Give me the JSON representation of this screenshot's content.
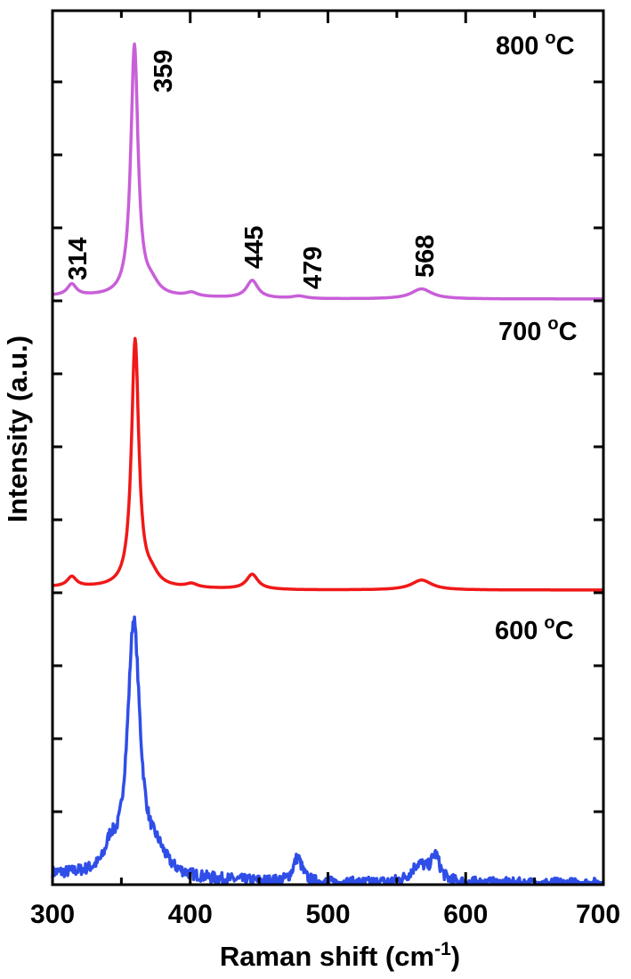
{
  "chart_data": {
    "type": "line",
    "xlabel": "Raman shift (cm",
    "xlabel_superscript": "-1",
    "xlabel_suffix": ")",
    "ylabel": "Intensity (a.u.)",
    "xlim": [
      300,
      700
    ],
    "xticks": [
      "300",
      "400",
      "500",
      "600",
      "700"
    ],
    "degree_symbol": "o",
    "series": [
      {
        "name": "800",
        "unit": "C",
        "color": "#c85fd8",
        "baseline": 0.02,
        "peaks": [
          {
            "x": 314,
            "amp": 0.045,
            "w": 4
          },
          {
            "x": 359.5,
            "amp": 1.0,
            "w": 3.2
          },
          {
            "x": 372,
            "amp": 0.04,
            "w": 6
          },
          {
            "x": 401,
            "amp": 0.015,
            "w": 5
          },
          {
            "x": 445,
            "amp": 0.07,
            "w": 5
          },
          {
            "x": 479,
            "amp": 0.01,
            "w": 6
          },
          {
            "x": 568,
            "amp": 0.04,
            "w": 9
          }
        ]
      },
      {
        "name": "700",
        "unit": "C",
        "color": "#f01818",
        "baseline": 0.02,
        "peaks": [
          {
            "x": 314,
            "amp": 0.04,
            "w": 4
          },
          {
            "x": 360,
            "amp": 1.0,
            "w": 3.2
          },
          {
            "x": 372,
            "amp": 0.04,
            "w": 6
          },
          {
            "x": 401,
            "amp": 0.015,
            "w": 5
          },
          {
            "x": 445,
            "amp": 0.06,
            "w": 5
          },
          {
            "x": 568,
            "amp": 0.04,
            "w": 9
          }
        ]
      },
      {
        "name": "600",
        "unit": "C",
        "color": "#2f4ee8",
        "baseline": 0.06,
        "peaks": [
          {
            "x": 342,
            "amp": 0.08,
            "w": 4
          },
          {
            "x": 359,
            "amp": 1.0,
            "w": 5.5
          },
          {
            "x": 376,
            "amp": 0.07,
            "w": 8
          },
          {
            "x": 478,
            "amp": 0.1,
            "w": 4
          },
          {
            "x": 566,
            "amp": 0.07,
            "w": 7
          },
          {
            "x": 578,
            "amp": 0.1,
            "w": 4
          }
        ]
      }
    ],
    "peak_labels": [
      "314",
      "359",
      "445",
      "479",
      "568"
    ],
    "grid": false
  }
}
